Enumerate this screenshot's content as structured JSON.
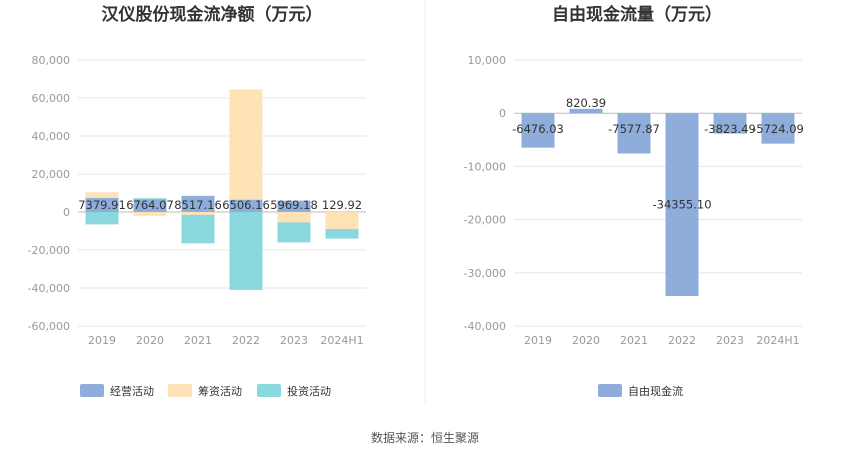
{
  "source": "数据来源：恒生聚源",
  "colors": {
    "operating": "#8eaddb",
    "financing": "#fde2b5",
    "investing": "#88d8dd",
    "free": "#8eaddb"
  },
  "chart_data": [
    {
      "type": "bar",
      "stacked": true,
      "title": "汉仪股份现金流净额（万元）",
      "categories": [
        "2019",
        "2020",
        "2021",
        "2022",
        "2023",
        "2024H1"
      ],
      "ylim": [
        -60000,
        80000
      ],
      "yticks": [
        80000,
        60000,
        40000,
        20000,
        0,
        -20000,
        -40000,
        -60000
      ],
      "ytick_labels": [
        "80,000",
        "60,000",
        "40,000",
        "20,000",
        "0",
        "-20,000",
        "-40,000",
        "-60,000"
      ],
      "grid": true,
      "legend": "bottom",
      "series": [
        {
          "name": "经营活动",
          "values": [
            7379.91,
            6764.07,
            8517.16,
            6506.16,
            5969.18,
            129.92
          ],
          "labels": [
            "7379.91",
            "6764.07",
            "8517.16",
            "6506.16",
            "5969.18",
            "129.92"
          ]
        },
        {
          "name": "筹资活动",
          "values": [
            3000,
            -2000,
            -1500,
            58000,
            -5500,
            -9000
          ]
        },
        {
          "name": "投资活动",
          "values": [
            -6500,
            500,
            -15000,
            -41000,
            -10500,
            -5000
          ]
        }
      ]
    },
    {
      "type": "bar",
      "title": "自由现金流量（万元）",
      "categories": [
        "2019",
        "2020",
        "2021",
        "2022",
        "2023",
        "2024H1"
      ],
      "ylim": [
        -40000,
        10000
      ],
      "yticks": [
        10000,
        0,
        -10000,
        -20000,
        -30000,
        -40000
      ],
      "ytick_labels": [
        "10,000",
        "0",
        "-10,000",
        "-20,000",
        "-30,000",
        "-40,000"
      ],
      "grid": true,
      "legend": "bottom",
      "series": [
        {
          "name": "自由现金流",
          "values": [
            -6476.03,
            820.39,
            -7577.87,
            -34355.1,
            -3823.49,
            -5724.09
          ],
          "labels": [
            "-6476.03",
            "820.39",
            "-7577.87",
            "-34355.10",
            "-3823.49",
            "-5724.09"
          ]
        }
      ]
    }
  ]
}
